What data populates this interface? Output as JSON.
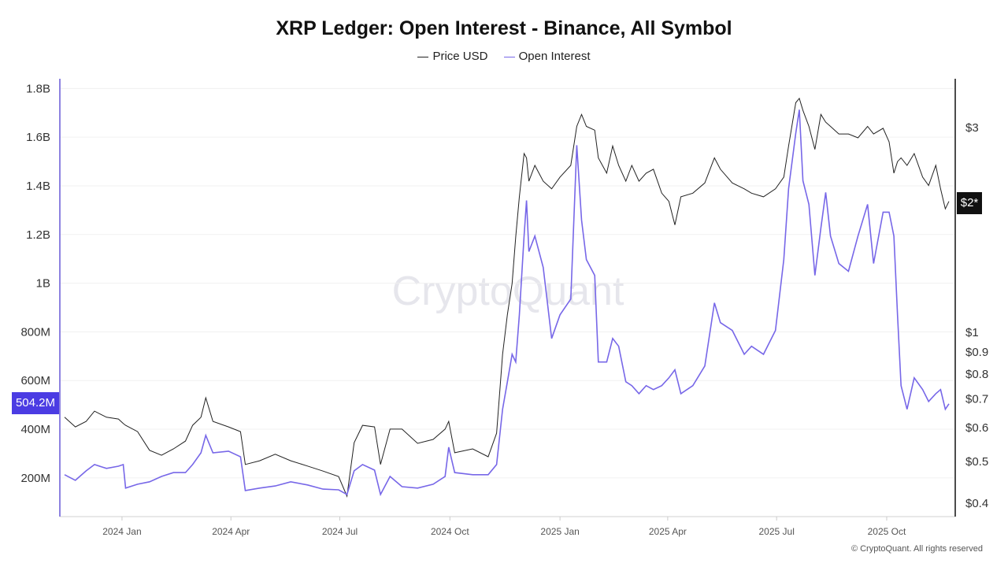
{
  "chart_data": {
    "type": "line",
    "title": "XRP Ledger: Open Interest - Binance, All Symbol",
    "legend": {
      "placement": "top-center",
      "entries": [
        "Price USD",
        "Open Interest"
      ]
    },
    "watermark": "CryptoQuant",
    "copyright": "© CryptoQuant. All rights reserved",
    "x_ticks": [
      {
        "date": "2024-01-01",
        "label": "2024 Jan"
      },
      {
        "date": "2024-04-01",
        "label": "2024 Apr"
      },
      {
        "date": "2024-07-01",
        "label": "2024 Jul"
      },
      {
        "date": "2024-10-01",
        "label": "2024 Oct"
      },
      {
        "date": "2025-01-01",
        "label": "2025 Jan"
      },
      {
        "date": "2025-04-01",
        "label": "2025 Apr"
      },
      {
        "date": "2025-07-01",
        "label": "2025 Jul"
      },
      {
        "date": "2025-10-01",
        "label": "2025 Oct"
      }
    ],
    "xlim": [
      "2023-11-14",
      "2025-11-22"
    ],
    "left_axis": {
      "scale": "linear",
      "ylim": [
        41000000,
        1840000000
      ],
      "grid": true,
      "ticks": [
        {
          "v": 200000000,
          "label": "200M"
        },
        {
          "v": 400000000,
          "label": "400M"
        },
        {
          "v": 600000000,
          "label": "600M"
        },
        {
          "v": 800000000,
          "label": "800M"
        },
        {
          "v": 1000000000,
          "label": "1B"
        },
        {
          "v": 1200000000,
          "label": "1.2B"
        },
        {
          "v": 1400000000,
          "label": "1.4B"
        },
        {
          "v": 1600000000,
          "label": "1.6B"
        },
        {
          "v": 1800000000,
          "label": "1.8B"
        }
      ],
      "current_label": "504.2M",
      "color": "#4b3ce3"
    },
    "right_axis": {
      "scale": "log",
      "ylim": [
        0.372,
        3.9
      ],
      "ticks": [
        {
          "v": 0.4,
          "label": "$0.4"
        },
        {
          "v": 0.5,
          "label": "$0.5"
        },
        {
          "v": 0.6,
          "label": "$0.6"
        },
        {
          "v": 0.7,
          "label": "$0.7"
        },
        {
          "v": 0.8,
          "label": "$0.8"
        },
        {
          "v": 0.9,
          "label": "$0.9"
        },
        {
          "v": 1,
          "label": "$1"
        },
        {
          "v": 3,
          "label": "$3"
        }
      ],
      "current_label": "$2*",
      "current_value": 2
    },
    "dates": [
      "2023-11-14",
      "2023-11-23",
      "2023-12-02",
      "2023-12-09",
      "2023-12-19",
      "2023-12-29",
      "2024-01-02",
      "2024-01-04",
      "2024-01-14",
      "2024-01-24",
      "2024-02-03",
      "2024-02-13",
      "2024-02-23",
      "2024-02-29",
      "2024-03-07",
      "2024-03-11",
      "2024-03-17",
      "2024-03-30",
      "2024-04-09",
      "2024-04-13",
      "2024-04-25",
      "2024-05-08",
      "2024-05-21",
      "2024-06-04",
      "2024-06-17",
      "2024-06-30",
      "2024-07-07",
      "2024-07-13",
      "2024-07-20",
      "2024-07-30",
      "2024-08-04",
      "2024-08-12",
      "2024-08-22",
      "2024-09-04",
      "2024-09-17",
      "2024-09-27",
      "2024-09-30",
      "2024-10-05",
      "2024-10-20",
      "2024-11-02",
      "2024-11-09",
      "2024-11-14",
      "2024-11-18",
      "2024-11-22",
      "2024-11-25",
      "2024-11-28",
      "2024-12-02",
      "2024-12-04",
      "2024-12-06",
      "2024-12-11",
      "2024-12-18",
      "2024-12-25",
      "2025-01-01",
      "2025-01-10",
      "2025-01-15",
      "2025-01-19",
      "2025-01-23",
      "2025-01-30",
      "2025-02-02",
      "2025-02-09",
      "2025-02-14",
      "2025-02-19",
      "2025-02-25",
      "2025-03-02",
      "2025-03-08",
      "2025-03-14",
      "2025-03-20",
      "2025-03-27",
      "2025-04-02",
      "2025-04-07",
      "2025-04-12",
      "2025-04-22",
      "2025-05-02",
      "2025-05-10",
      "2025-05-15",
      "2025-05-25",
      "2025-06-04",
      "2025-06-10",
      "2025-06-20",
      "2025-06-30",
      "2025-07-07",
      "2025-07-11",
      "2025-07-17",
      "2025-07-20",
      "2025-07-23",
      "2025-07-28",
      "2025-08-02",
      "2025-08-07",
      "2025-08-11",
      "2025-08-15",
      "2025-08-22",
      "2025-08-30",
      "2025-09-07",
      "2025-09-15",
      "2025-09-20",
      "2025-09-28",
      "2025-10-03",
      "2025-10-07",
      "2025-10-10",
      "2025-10-13",
      "2025-10-18",
      "2025-10-24",
      "2025-10-31",
      "2025-11-05",
      "2025-11-11",
      "2025-11-15",
      "2025-11-19",
      "2025-11-22"
    ],
    "series": [
      {
        "name": "Price USD",
        "axis": "right",
        "color": "#222222",
        "values": [
          0.634,
          0.602,
          0.62,
          0.655,
          0.634,
          0.628,
          0.613,
          0.607,
          0.587,
          0.531,
          0.517,
          0.535,
          0.558,
          0.607,
          0.634,
          0.704,
          0.62,
          0.602,
          0.587,
          0.492,
          0.502,
          0.52,
          0.502,
          0.488,
          0.475,
          0.461,
          0.415,
          0.553,
          0.607,
          0.602,
          0.492,
          0.595,
          0.595,
          0.551,
          0.563,
          0.595,
          0.62,
          0.524,
          0.535,
          0.513,
          0.582,
          0.889,
          1.1,
          1.3,
          1.67,
          2.07,
          2.61,
          2.55,
          2.25,
          2.45,
          2.25,
          2.16,
          2.3,
          2.45,
          3.02,
          3.22,
          3.02,
          2.96,
          2.55,
          2.35,
          2.72,
          2.45,
          2.25,
          2.45,
          2.25,
          2.35,
          2.4,
          2.11,
          2.02,
          1.78,
          2.07,
          2.11,
          2.23,
          2.55,
          2.4,
          2.23,
          2.16,
          2.11,
          2.07,
          2.16,
          2.3,
          2.72,
          3.43,
          3.51,
          3.29,
          3.02,
          2.67,
          3.22,
          3.09,
          3.02,
          2.9,
          2.9,
          2.84,
          3.02,
          2.9,
          2.99,
          2.78,
          2.35,
          2.5,
          2.55,
          2.45,
          2.61,
          2.3,
          2.2,
          2.45,
          2.16,
          1.94,
          2.02
        ]
      },
      {
        "name": "Open Interest",
        "axis": "left",
        "color": "#7767e8",
        "values": [
          213000000,
          190000000,
          229000000,
          255000000,
          239000000,
          248000000,
          255000000,
          158000000,
          174000000,
          184000000,
          206000000,
          222000000,
          222000000,
          255000000,
          303000000,
          375000000,
          303000000,
          310000000,
          287000000,
          148000000,
          158000000,
          167000000,
          184000000,
          171000000,
          154000000,
          151000000,
          132000000,
          229000000,
          255000000,
          232000000,
          132000000,
          206000000,
          164000000,
          158000000,
          174000000,
          206000000,
          326000000,
          222000000,
          213000000,
          213000000,
          255000000,
          482000000,
          595000000,
          708000000,
          676000000,
          870000000,
          1194000000,
          1340000000,
          1130000000,
          1194000000,
          1065000000,
          773000000,
          870000000,
          935000000,
          1567000000,
          1259000000,
          1097000000,
          1032000000,
          676000000,
          676000000,
          773000000,
          741000000,
          595000000,
          579000000,
          546000000,
          579000000,
          563000000,
          579000000,
          611000000,
          644000000,
          546000000,
          579000000,
          660000000,
          919000000,
          838000000,
          806000000,
          708000000,
          741000000,
          708000000,
          806000000,
          1097000000,
          1389000000,
          1616000000,
          1713000000,
          1421000000,
          1324000000,
          1032000000,
          1227000000,
          1373000000,
          1194000000,
          1081000000,
          1049000000,
          1194000000,
          1324000000,
          1081000000,
          1292000000,
          1292000000,
          1194000000,
          870000000,
          579000000,
          482000000,
          611000000,
          563000000,
          514000000,
          546000000,
          563000000,
          482000000,
          504200000
        ]
      }
    ]
  }
}
